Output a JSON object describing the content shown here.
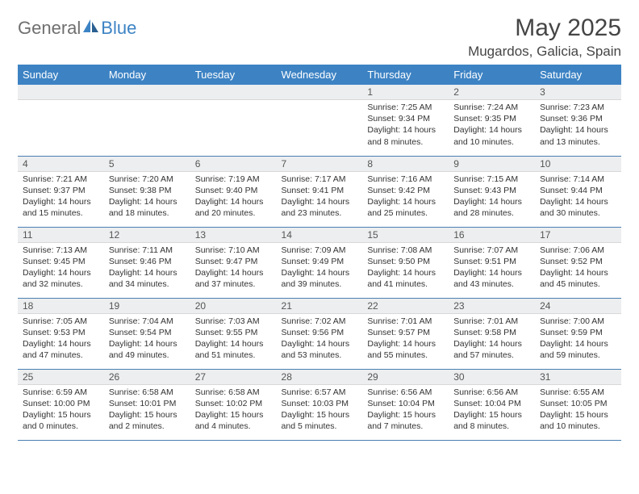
{
  "logo": {
    "text1": "General",
    "text2": "Blue"
  },
  "title": "May 2025",
  "location": "Mugardos, Galicia, Spain",
  "colors": {
    "header_bg": "#3d83c4",
    "daynum_bg": "#eceeef",
    "row_divider": "#4a7fb3",
    "text": "#333333"
  },
  "weekdays": [
    "Sunday",
    "Monday",
    "Tuesday",
    "Wednesday",
    "Thursday",
    "Friday",
    "Saturday"
  ],
  "weeks": [
    [
      null,
      null,
      null,
      null,
      {
        "n": "1",
        "sr": "7:25 AM",
        "ss": "9:34 PM",
        "dl": "14 hours and 8 minutes."
      },
      {
        "n": "2",
        "sr": "7:24 AM",
        "ss": "9:35 PM",
        "dl": "14 hours and 10 minutes."
      },
      {
        "n": "3",
        "sr": "7:23 AM",
        "ss": "9:36 PM",
        "dl": "14 hours and 13 minutes."
      }
    ],
    [
      {
        "n": "4",
        "sr": "7:21 AM",
        "ss": "9:37 PM",
        "dl": "14 hours and 15 minutes."
      },
      {
        "n": "5",
        "sr": "7:20 AM",
        "ss": "9:38 PM",
        "dl": "14 hours and 18 minutes."
      },
      {
        "n": "6",
        "sr": "7:19 AM",
        "ss": "9:40 PM",
        "dl": "14 hours and 20 minutes."
      },
      {
        "n": "7",
        "sr": "7:17 AM",
        "ss": "9:41 PM",
        "dl": "14 hours and 23 minutes."
      },
      {
        "n": "8",
        "sr": "7:16 AM",
        "ss": "9:42 PM",
        "dl": "14 hours and 25 minutes."
      },
      {
        "n": "9",
        "sr": "7:15 AM",
        "ss": "9:43 PM",
        "dl": "14 hours and 28 minutes."
      },
      {
        "n": "10",
        "sr": "7:14 AM",
        "ss": "9:44 PM",
        "dl": "14 hours and 30 minutes."
      }
    ],
    [
      {
        "n": "11",
        "sr": "7:13 AM",
        "ss": "9:45 PM",
        "dl": "14 hours and 32 minutes."
      },
      {
        "n": "12",
        "sr": "7:11 AM",
        "ss": "9:46 PM",
        "dl": "14 hours and 34 minutes."
      },
      {
        "n": "13",
        "sr": "7:10 AM",
        "ss": "9:47 PM",
        "dl": "14 hours and 37 minutes."
      },
      {
        "n": "14",
        "sr": "7:09 AM",
        "ss": "9:49 PM",
        "dl": "14 hours and 39 minutes."
      },
      {
        "n": "15",
        "sr": "7:08 AM",
        "ss": "9:50 PM",
        "dl": "14 hours and 41 minutes."
      },
      {
        "n": "16",
        "sr": "7:07 AM",
        "ss": "9:51 PM",
        "dl": "14 hours and 43 minutes."
      },
      {
        "n": "17",
        "sr": "7:06 AM",
        "ss": "9:52 PM",
        "dl": "14 hours and 45 minutes."
      }
    ],
    [
      {
        "n": "18",
        "sr": "7:05 AM",
        "ss": "9:53 PM",
        "dl": "14 hours and 47 minutes."
      },
      {
        "n": "19",
        "sr": "7:04 AM",
        "ss": "9:54 PM",
        "dl": "14 hours and 49 minutes."
      },
      {
        "n": "20",
        "sr": "7:03 AM",
        "ss": "9:55 PM",
        "dl": "14 hours and 51 minutes."
      },
      {
        "n": "21",
        "sr": "7:02 AM",
        "ss": "9:56 PM",
        "dl": "14 hours and 53 minutes."
      },
      {
        "n": "22",
        "sr": "7:01 AM",
        "ss": "9:57 PM",
        "dl": "14 hours and 55 minutes."
      },
      {
        "n": "23",
        "sr": "7:01 AM",
        "ss": "9:58 PM",
        "dl": "14 hours and 57 minutes."
      },
      {
        "n": "24",
        "sr": "7:00 AM",
        "ss": "9:59 PM",
        "dl": "14 hours and 59 minutes."
      }
    ],
    [
      {
        "n": "25",
        "sr": "6:59 AM",
        "ss": "10:00 PM",
        "dl": "15 hours and 0 minutes."
      },
      {
        "n": "26",
        "sr": "6:58 AM",
        "ss": "10:01 PM",
        "dl": "15 hours and 2 minutes."
      },
      {
        "n": "27",
        "sr": "6:58 AM",
        "ss": "10:02 PM",
        "dl": "15 hours and 4 minutes."
      },
      {
        "n": "28",
        "sr": "6:57 AM",
        "ss": "10:03 PM",
        "dl": "15 hours and 5 minutes."
      },
      {
        "n": "29",
        "sr": "6:56 AM",
        "ss": "10:04 PM",
        "dl": "15 hours and 7 minutes."
      },
      {
        "n": "30",
        "sr": "6:56 AM",
        "ss": "10:04 PM",
        "dl": "15 hours and 8 minutes."
      },
      {
        "n": "31",
        "sr": "6:55 AM",
        "ss": "10:05 PM",
        "dl": "15 hours and 10 minutes."
      }
    ]
  ],
  "labels": {
    "sunrise": "Sunrise:",
    "sunset": "Sunset:",
    "daylight": "Daylight:"
  }
}
